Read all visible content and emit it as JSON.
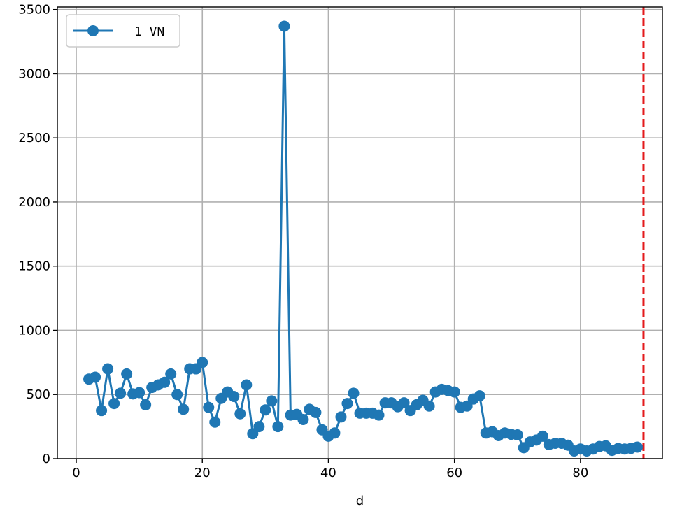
{
  "chart_data": {
    "type": "line",
    "xlabel": "d",
    "ylabel": "",
    "xlim": [
      -3,
      93
    ],
    "ylim": [
      0,
      3520
    ],
    "x_ticks": [
      0,
      20,
      40,
      60,
      80
    ],
    "y_ticks": [
      0,
      500,
      1000,
      1500,
      2000,
      2500,
      3000,
      3500
    ],
    "grid": true,
    "legend_position": "top-left",
    "vertical_line": {
      "x": 90,
      "color": "#e31a1c",
      "style": "dashed"
    },
    "series": [
      {
        "name": "1 VN",
        "color": "#1f77b4",
        "x": [
          2,
          3,
          4,
          5,
          6,
          7,
          8,
          9,
          10,
          11,
          12,
          13,
          14,
          15,
          16,
          17,
          18,
          19,
          20,
          21,
          22,
          23,
          24,
          25,
          26,
          27,
          28,
          29,
          30,
          31,
          32,
          33,
          34,
          35,
          36,
          37,
          38,
          39,
          40,
          41,
          42,
          43,
          44,
          45,
          46,
          47,
          48,
          49,
          50,
          51,
          52,
          53,
          54,
          55,
          56,
          57,
          58,
          59,
          60,
          61,
          62,
          63,
          64,
          65,
          66,
          67,
          68,
          69,
          70,
          71,
          72,
          73,
          74,
          75,
          76,
          77,
          78,
          79,
          80,
          81,
          82,
          83,
          84,
          85,
          86,
          87,
          88,
          89
        ],
        "y": [
          620,
          635,
          375,
          700,
          430,
          510,
          660,
          505,
          515,
          420,
          555,
          575,
          595,
          660,
          500,
          385,
          700,
          700,
          750,
          400,
          285,
          470,
          520,
          485,
          350,
          575,
          195,
          250,
          380,
          450,
          250,
          3370,
          340,
          345,
          305,
          385,
          360,
          225,
          175,
          200,
          325,
          430,
          510,
          355,
          355,
          355,
          340,
          435,
          435,
          405,
          435,
          375,
          420,
          455,
          410,
          520,
          540,
          530,
          520,
          400,
          410,
          465,
          490,
          200,
          210,
          180,
          200,
          190,
          185,
          85,
          130,
          145,
          175,
          110,
          120,
          120,
          105,
          60,
          75,
          60,
          75,
          95,
          100,
          65,
          80,
          75,
          80,
          90
        ]
      }
    ]
  }
}
